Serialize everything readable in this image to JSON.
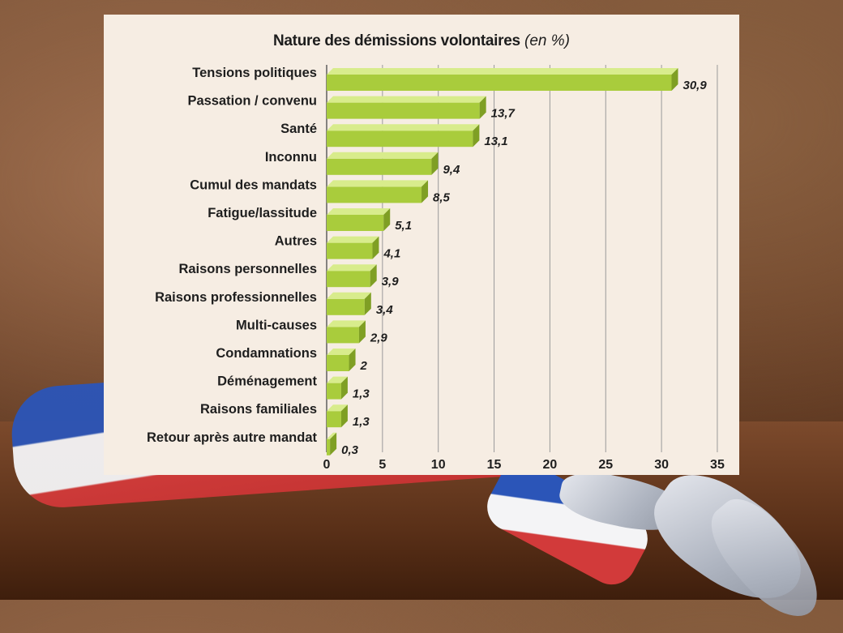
{
  "chart_data": {
    "type": "bar",
    "orientation": "horizontal",
    "title": "Nature des démissions volontaires",
    "title_unit": "(en %)",
    "categories": [
      "Tensions politiques",
      "Passation / convenu",
      "Santé",
      "Inconnu",
      "Cumul des mandats",
      "Fatigue/lassitude",
      "Autres",
      "Raisons personnelles",
      "Raisons professionnelles",
      "Multi-causes",
      "Condamnations",
      "Déménagement",
      "Raisons familiales",
      "Retour après autre mandat"
    ],
    "values": [
      30.9,
      13.7,
      13.1,
      9.4,
      8.5,
      5.1,
      4.1,
      3.9,
      3.4,
      2.9,
      2,
      1.3,
      1.3,
      0.3
    ],
    "value_labels": [
      "30,9",
      "13,7",
      "13,1",
      "9,4",
      "8,5",
      "5,1",
      "4,1",
      "3,9",
      "3,4",
      "2,9",
      "2",
      "1,3",
      "1,3",
      "0,3"
    ],
    "xlim": [
      0,
      35
    ],
    "xticks": [
      0,
      5,
      10,
      15,
      20,
      25,
      30,
      35
    ],
    "grid": "vertical",
    "colors": {
      "bar_front": "#a9cc3c",
      "bar_top": "#d8ec8c",
      "bar_side": "#7f9f24",
      "panel": "#f6ede3",
      "grid": "#9a9a9a"
    }
  }
}
